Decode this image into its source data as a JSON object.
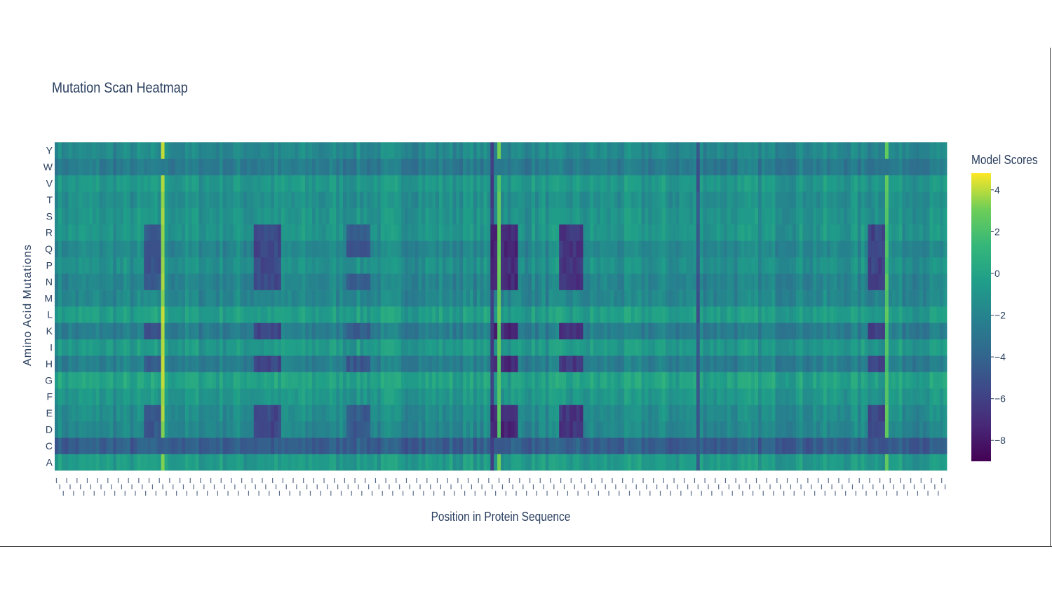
{
  "chart_data": {
    "type": "heatmap",
    "title": "Mutation Scan Heatmap",
    "xlabel": "Position in Protein Sequence",
    "ylabel": "Amino Acid Mutations",
    "colorbar": {
      "title": "Model Scores",
      "range": [
        -9,
        4.8
      ],
      "ticks": [
        4,
        2,
        0,
        -2,
        -4,
        -6,
        -8
      ],
      "tick_labels": [
        "4",
        "2",
        "0",
        "−2",
        "−4",
        "−6",
        "−8"
      ],
      "colorscale": "Viridis"
    },
    "y_categories": [
      "A",
      "C",
      "D",
      "E",
      "F",
      "G",
      "H",
      "I",
      "K",
      "L",
      "M",
      "N",
      "P",
      "Q",
      "R",
      "S",
      "T",
      "V",
      "W",
      "Y"
    ],
    "n_positions": 260,
    "row_base_scores": {
      "A": -0.6,
      "C": -4.4,
      "D": -1.8,
      "E": -1.5,
      "F": -0.8,
      "G": -0.1,
      "H": -2.3,
      "I": -0.7,
      "K": -2.4,
      "L": -0.4,
      "M": -1.8,
      "N": -2.0,
      "P": -1.2,
      "Q": -1.8,
      "R": -0.9,
      "S": -1.0,
      "T": -1.3,
      "V": -0.8,
      "W": -2.6,
      "Y": -1.7
    },
    "low_score_regions": [
      {
        "start": 26,
        "end": 31,
        "rows": [
          "D",
          "E",
          "H",
          "K",
          "N",
          "P",
          "Q",
          "R"
        ],
        "score": -4.8
      },
      {
        "start": 58,
        "end": 65,
        "rows": [
          "D",
          "E",
          "H",
          "K",
          "N",
          "P",
          "Q",
          "R"
        ],
        "score": -5.6
      },
      {
        "start": 85,
        "end": 91,
        "rows": [
          "D",
          "E",
          "H",
          "K",
          "N",
          "Q",
          "R"
        ],
        "score": -4.6
      },
      {
        "start": 127,
        "end": 134,
        "rows": [
          "D",
          "E",
          "H",
          "K",
          "N",
          "P",
          "Q",
          "R"
        ],
        "score": -7.2
      },
      {
        "start": 147,
        "end": 153,
        "rows": [
          "D",
          "E",
          "H",
          "K",
          "N",
          "P",
          "Q",
          "R"
        ],
        "score": -6.6
      },
      {
        "start": 237,
        "end": 242,
        "rows": [
          "D",
          "E",
          "H",
          "K",
          "N",
          "P",
          "Q",
          "R"
        ],
        "score": -5.8
      }
    ],
    "low_score_columns": [
      {
        "position": 127,
        "score": -6.5
      },
      {
        "position": 187,
        "score": -5.5
      }
    ],
    "high_score_columns": [
      {
        "position": 31,
        "score": 4.2
      },
      {
        "position": 129,
        "score": 3.2
      },
      {
        "position": 242,
        "score": 2.8
      }
    ]
  }
}
